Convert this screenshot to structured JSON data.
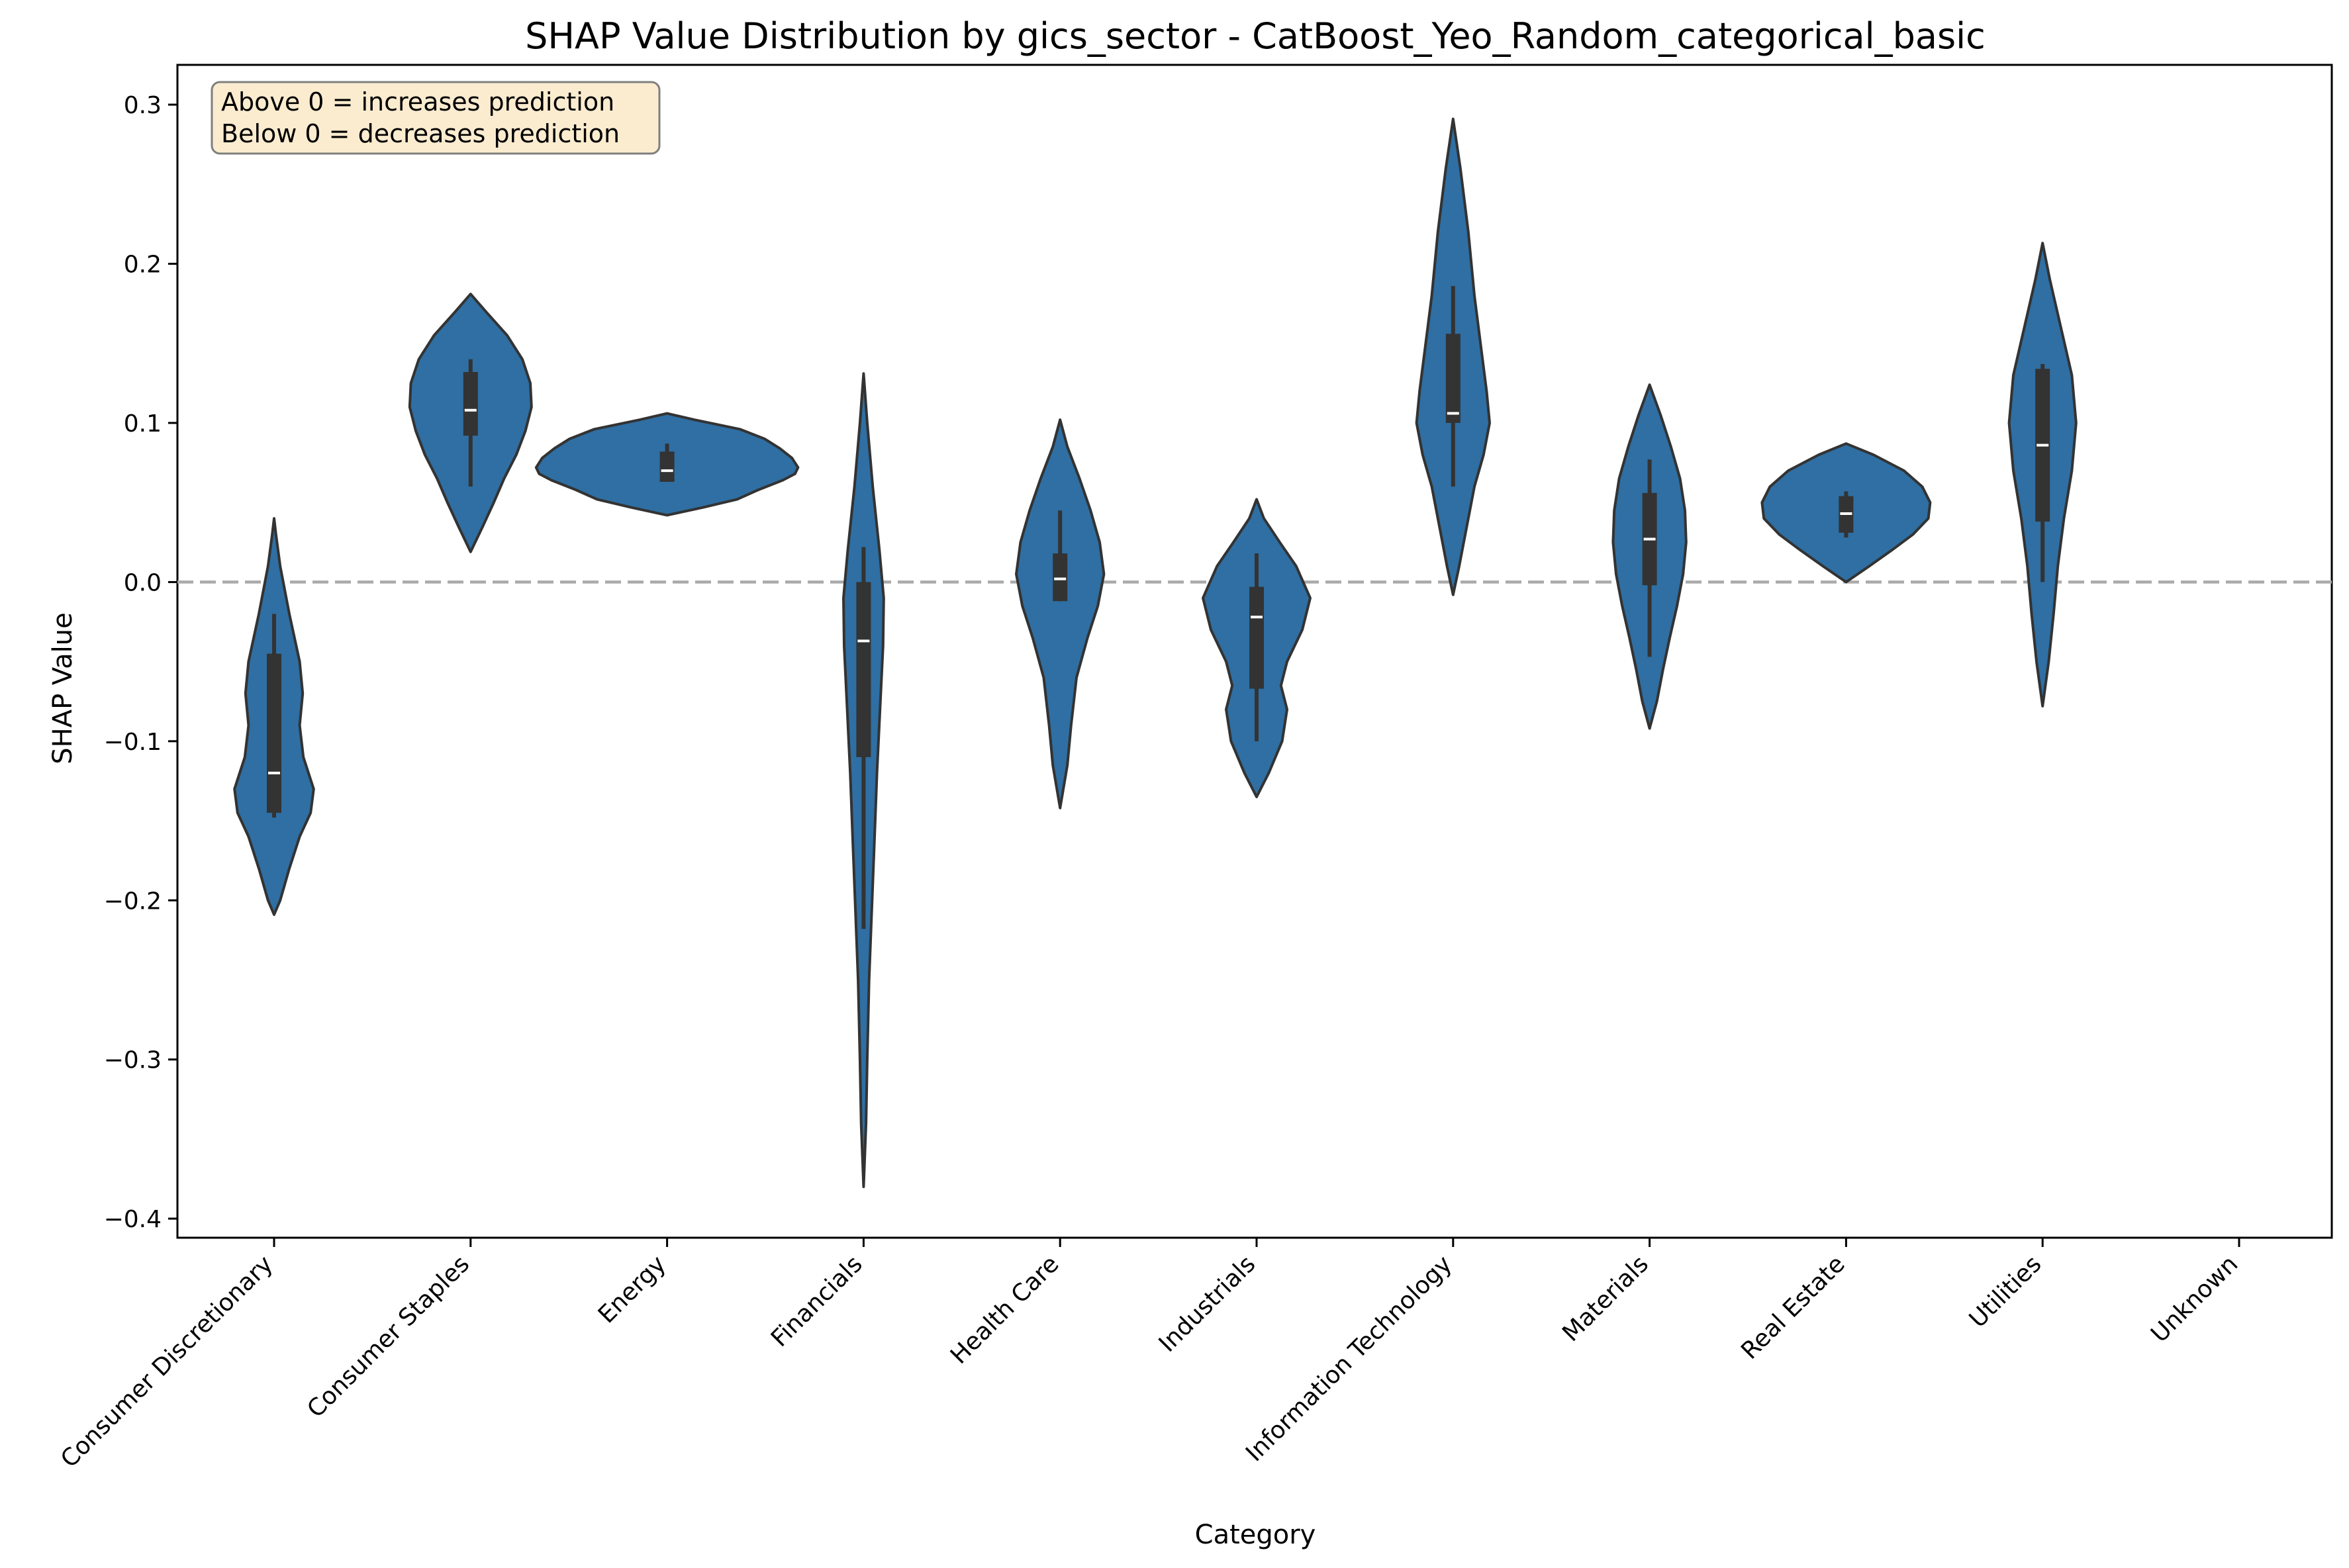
{
  "chart_data": {
    "type": "violin",
    "title": "SHAP Value Distribution by gics_sector - CatBoost_Yeo_Random_categorical_basic",
    "xlabel": "Category",
    "ylabel": "SHAP Value",
    "ylim": [
      -0.412,
      0.325
    ],
    "yticks": [
      0.3,
      0.2,
      0.1,
      0.0,
      -0.1,
      -0.2,
      -0.3,
      -0.4
    ],
    "ytick_labels": [
      "0.3",
      "0.2",
      "0.1",
      "0.0",
      "−0.1",
      "−0.2",
      "−0.3",
      "−0.4"
    ],
    "reference_line": {
      "y": 0.0,
      "style": "dashed",
      "color": "#aaaaaa"
    },
    "annotation": {
      "lines": [
        "Above 0 = increases prediction",
        "Below 0 = decreases prediction"
      ],
      "placement": "top-left",
      "background": "#fbeccf",
      "border": "#7f7f7f"
    },
    "colors": {
      "violin_fill": "#2f6fa3",
      "violin_edge": "#333333",
      "box": "#333333",
      "median": "#ffffff"
    },
    "categories": [
      "Consumer Discretionary",
      "Consumer Staples",
      "Energy",
      "Financials",
      "Health Care",
      "Industrials",
      "Information Technology",
      "Materials",
      "Real Estate",
      "Utilities",
      "Unknown"
    ],
    "violins": [
      {
        "category": "Consumer Discretionary",
        "min": -0.209,
        "max": 0.04,
        "q1": -0.145,
        "median": -0.12,
        "q3": -0.045,
        "whisker_low": -0.148,
        "whisker_high": -0.02,
        "density": [
          [
            0.04,
            0.0
          ],
          [
            0.03,
            0.03
          ],
          [
            0.01,
            0.1
          ],
          [
            -0.02,
            0.25
          ],
          [
            -0.05,
            0.42
          ],
          [
            -0.07,
            0.47
          ],
          [
            -0.09,
            0.42
          ],
          [
            -0.11,
            0.48
          ],
          [
            -0.13,
            0.65
          ],
          [
            -0.145,
            0.6
          ],
          [
            -0.16,
            0.42
          ],
          [
            -0.18,
            0.25
          ],
          [
            -0.2,
            0.1
          ],
          [
            -0.209,
            0.0
          ]
        ]
      },
      {
        "category": "Consumer Staples",
        "min": 0.019,
        "max": 0.181,
        "q1": 0.092,
        "median": 0.108,
        "q3": 0.132,
        "whisker_low": 0.06,
        "whisker_high": 0.14,
        "density": [
          [
            0.181,
            0.0
          ],
          [
            0.17,
            0.25
          ],
          [
            0.155,
            0.6
          ],
          [
            0.14,
            0.85
          ],
          [
            0.125,
            0.98
          ],
          [
            0.11,
            1.0
          ],
          [
            0.095,
            0.9
          ],
          [
            0.08,
            0.75
          ],
          [
            0.065,
            0.55
          ],
          [
            0.05,
            0.38
          ],
          [
            0.035,
            0.2
          ],
          [
            0.019,
            0.0
          ]
        ]
      },
      {
        "category": "Energy",
        "min": 0.042,
        "max": 0.106,
        "q1": 0.063,
        "median": 0.07,
        "q3": 0.082,
        "whisker_low": 0.063,
        "whisker_high": 0.087,
        "density": [
          [
            0.106,
            0.0
          ],
          [
            0.102,
            0.45
          ],
          [
            0.096,
            1.2
          ],
          [
            0.09,
            1.6
          ],
          [
            0.084,
            1.85
          ],
          [
            0.078,
            2.05
          ],
          [
            0.072,
            2.15
          ],
          [
            0.068,
            2.1
          ],
          [
            0.064,
            1.9
          ],
          [
            0.058,
            1.5
          ],
          [
            0.052,
            1.15
          ],
          [
            0.047,
            0.6
          ],
          [
            0.042,
            0.0
          ]
        ]
      },
      {
        "category": "Financials",
        "min": -0.38,
        "max": 0.131,
        "q1": -0.11,
        "median": -0.037,
        "q3": 0.0,
        "whisker_low": -0.218,
        "whisker_high": 0.022,
        "density": [
          [
            0.131,
            0.0
          ],
          [
            0.1,
            0.06
          ],
          [
            0.06,
            0.15
          ],
          [
            0.02,
            0.26
          ],
          [
            -0.01,
            0.33
          ],
          [
            -0.04,
            0.32
          ],
          [
            -0.08,
            0.27
          ],
          [
            -0.12,
            0.22
          ],
          [
            -0.16,
            0.18
          ],
          [
            -0.2,
            0.14
          ],
          [
            -0.25,
            0.09
          ],
          [
            -0.3,
            0.06
          ],
          [
            -0.34,
            0.04
          ],
          [
            -0.38,
            0.0
          ]
        ]
      },
      {
        "category": "Health Care",
        "min": -0.142,
        "max": 0.102,
        "q1": -0.012,
        "median": 0.002,
        "q3": 0.018,
        "whisker_low": -0.012,
        "whisker_high": 0.045,
        "density": [
          [
            0.102,
            0.0
          ],
          [
            0.085,
            0.12
          ],
          [
            0.065,
            0.32
          ],
          [
            0.045,
            0.5
          ],
          [
            0.025,
            0.65
          ],
          [
            0.005,
            0.72
          ],
          [
            -0.015,
            0.62
          ],
          [
            -0.035,
            0.45
          ],
          [
            -0.06,
            0.27
          ],
          [
            -0.09,
            0.18
          ],
          [
            -0.115,
            0.12
          ],
          [
            -0.142,
            0.0
          ]
        ]
      },
      {
        "category": "Industrials",
        "min": -0.135,
        "max": 0.052,
        "q1": -0.067,
        "median": -0.022,
        "q3": -0.003,
        "whisker_low": -0.1,
        "whisker_high": 0.018,
        "density": [
          [
            0.052,
            0.0
          ],
          [
            0.04,
            0.12
          ],
          [
            0.025,
            0.38
          ],
          [
            0.01,
            0.65
          ],
          [
            -0.01,
            0.88
          ],
          [
            -0.03,
            0.75
          ],
          [
            -0.05,
            0.5
          ],
          [
            -0.065,
            0.4
          ],
          [
            -0.08,
            0.5
          ],
          [
            -0.1,
            0.42
          ],
          [
            -0.12,
            0.2
          ],
          [
            -0.135,
            0.0
          ]
        ]
      },
      {
        "category": "Information Technology",
        "min": -0.008,
        "max": 0.291,
        "q1": 0.1,
        "median": 0.106,
        "q3": 0.156,
        "whisker_low": 0.06,
        "whisker_high": 0.186,
        "density": [
          [
            0.291,
            0.0
          ],
          [
            0.26,
            0.12
          ],
          [
            0.22,
            0.25
          ],
          [
            0.18,
            0.35
          ],
          [
            0.15,
            0.45
          ],
          [
            0.12,
            0.55
          ],
          [
            0.1,
            0.6
          ],
          [
            0.08,
            0.5
          ],
          [
            0.06,
            0.35
          ],
          [
            0.03,
            0.2
          ],
          [
            0.01,
            0.1
          ],
          [
            -0.008,
            0.0
          ]
        ]
      },
      {
        "category": "Materials",
        "min": -0.092,
        "max": 0.124,
        "q1": -0.002,
        "median": 0.027,
        "q3": 0.056,
        "whisker_low": -0.047,
        "whisker_high": 0.077,
        "density": [
          [
            0.124,
            0.0
          ],
          [
            0.105,
            0.18
          ],
          [
            0.085,
            0.35
          ],
          [
            0.065,
            0.5
          ],
          [
            0.045,
            0.58
          ],
          [
            0.025,
            0.6
          ],
          [
            0.005,
            0.55
          ],
          [
            -0.015,
            0.45
          ],
          [
            -0.035,
            0.33
          ],
          [
            -0.055,
            0.22
          ],
          [
            -0.075,
            0.12
          ],
          [
            -0.092,
            0.0
          ]
        ]
      },
      {
        "category": "Real Estate",
        "min": 0.0,
        "max": 0.087,
        "q1": 0.031,
        "median": 0.043,
        "q3": 0.054,
        "whisker_low": 0.028,
        "whisker_high": 0.057,
        "density": [
          [
            0.087,
            0.0
          ],
          [
            0.08,
            0.45
          ],
          [
            0.07,
            0.95
          ],
          [
            0.06,
            1.25
          ],
          [
            0.05,
            1.38
          ],
          [
            0.04,
            1.35
          ],
          [
            0.03,
            1.1
          ],
          [
            0.02,
            0.75
          ],
          [
            0.01,
            0.38
          ],
          [
            0.0,
            0.0
          ]
        ]
      },
      {
        "category": "Utilities",
        "min": -0.078,
        "max": 0.213,
        "q1": 0.038,
        "median": 0.086,
        "q3": 0.134,
        "whisker_low": 0.0,
        "whisker_high": 0.137,
        "density": [
          [
            0.213,
            0.0
          ],
          [
            0.19,
            0.12
          ],
          [
            0.16,
            0.3
          ],
          [
            0.13,
            0.48
          ],
          [
            0.1,
            0.55
          ],
          [
            0.07,
            0.48
          ],
          [
            0.04,
            0.35
          ],
          [
            0.01,
            0.25
          ],
          [
            -0.02,
            0.18
          ],
          [
            -0.05,
            0.1
          ],
          [
            -0.078,
            0.0
          ]
        ]
      }
    ]
  }
}
